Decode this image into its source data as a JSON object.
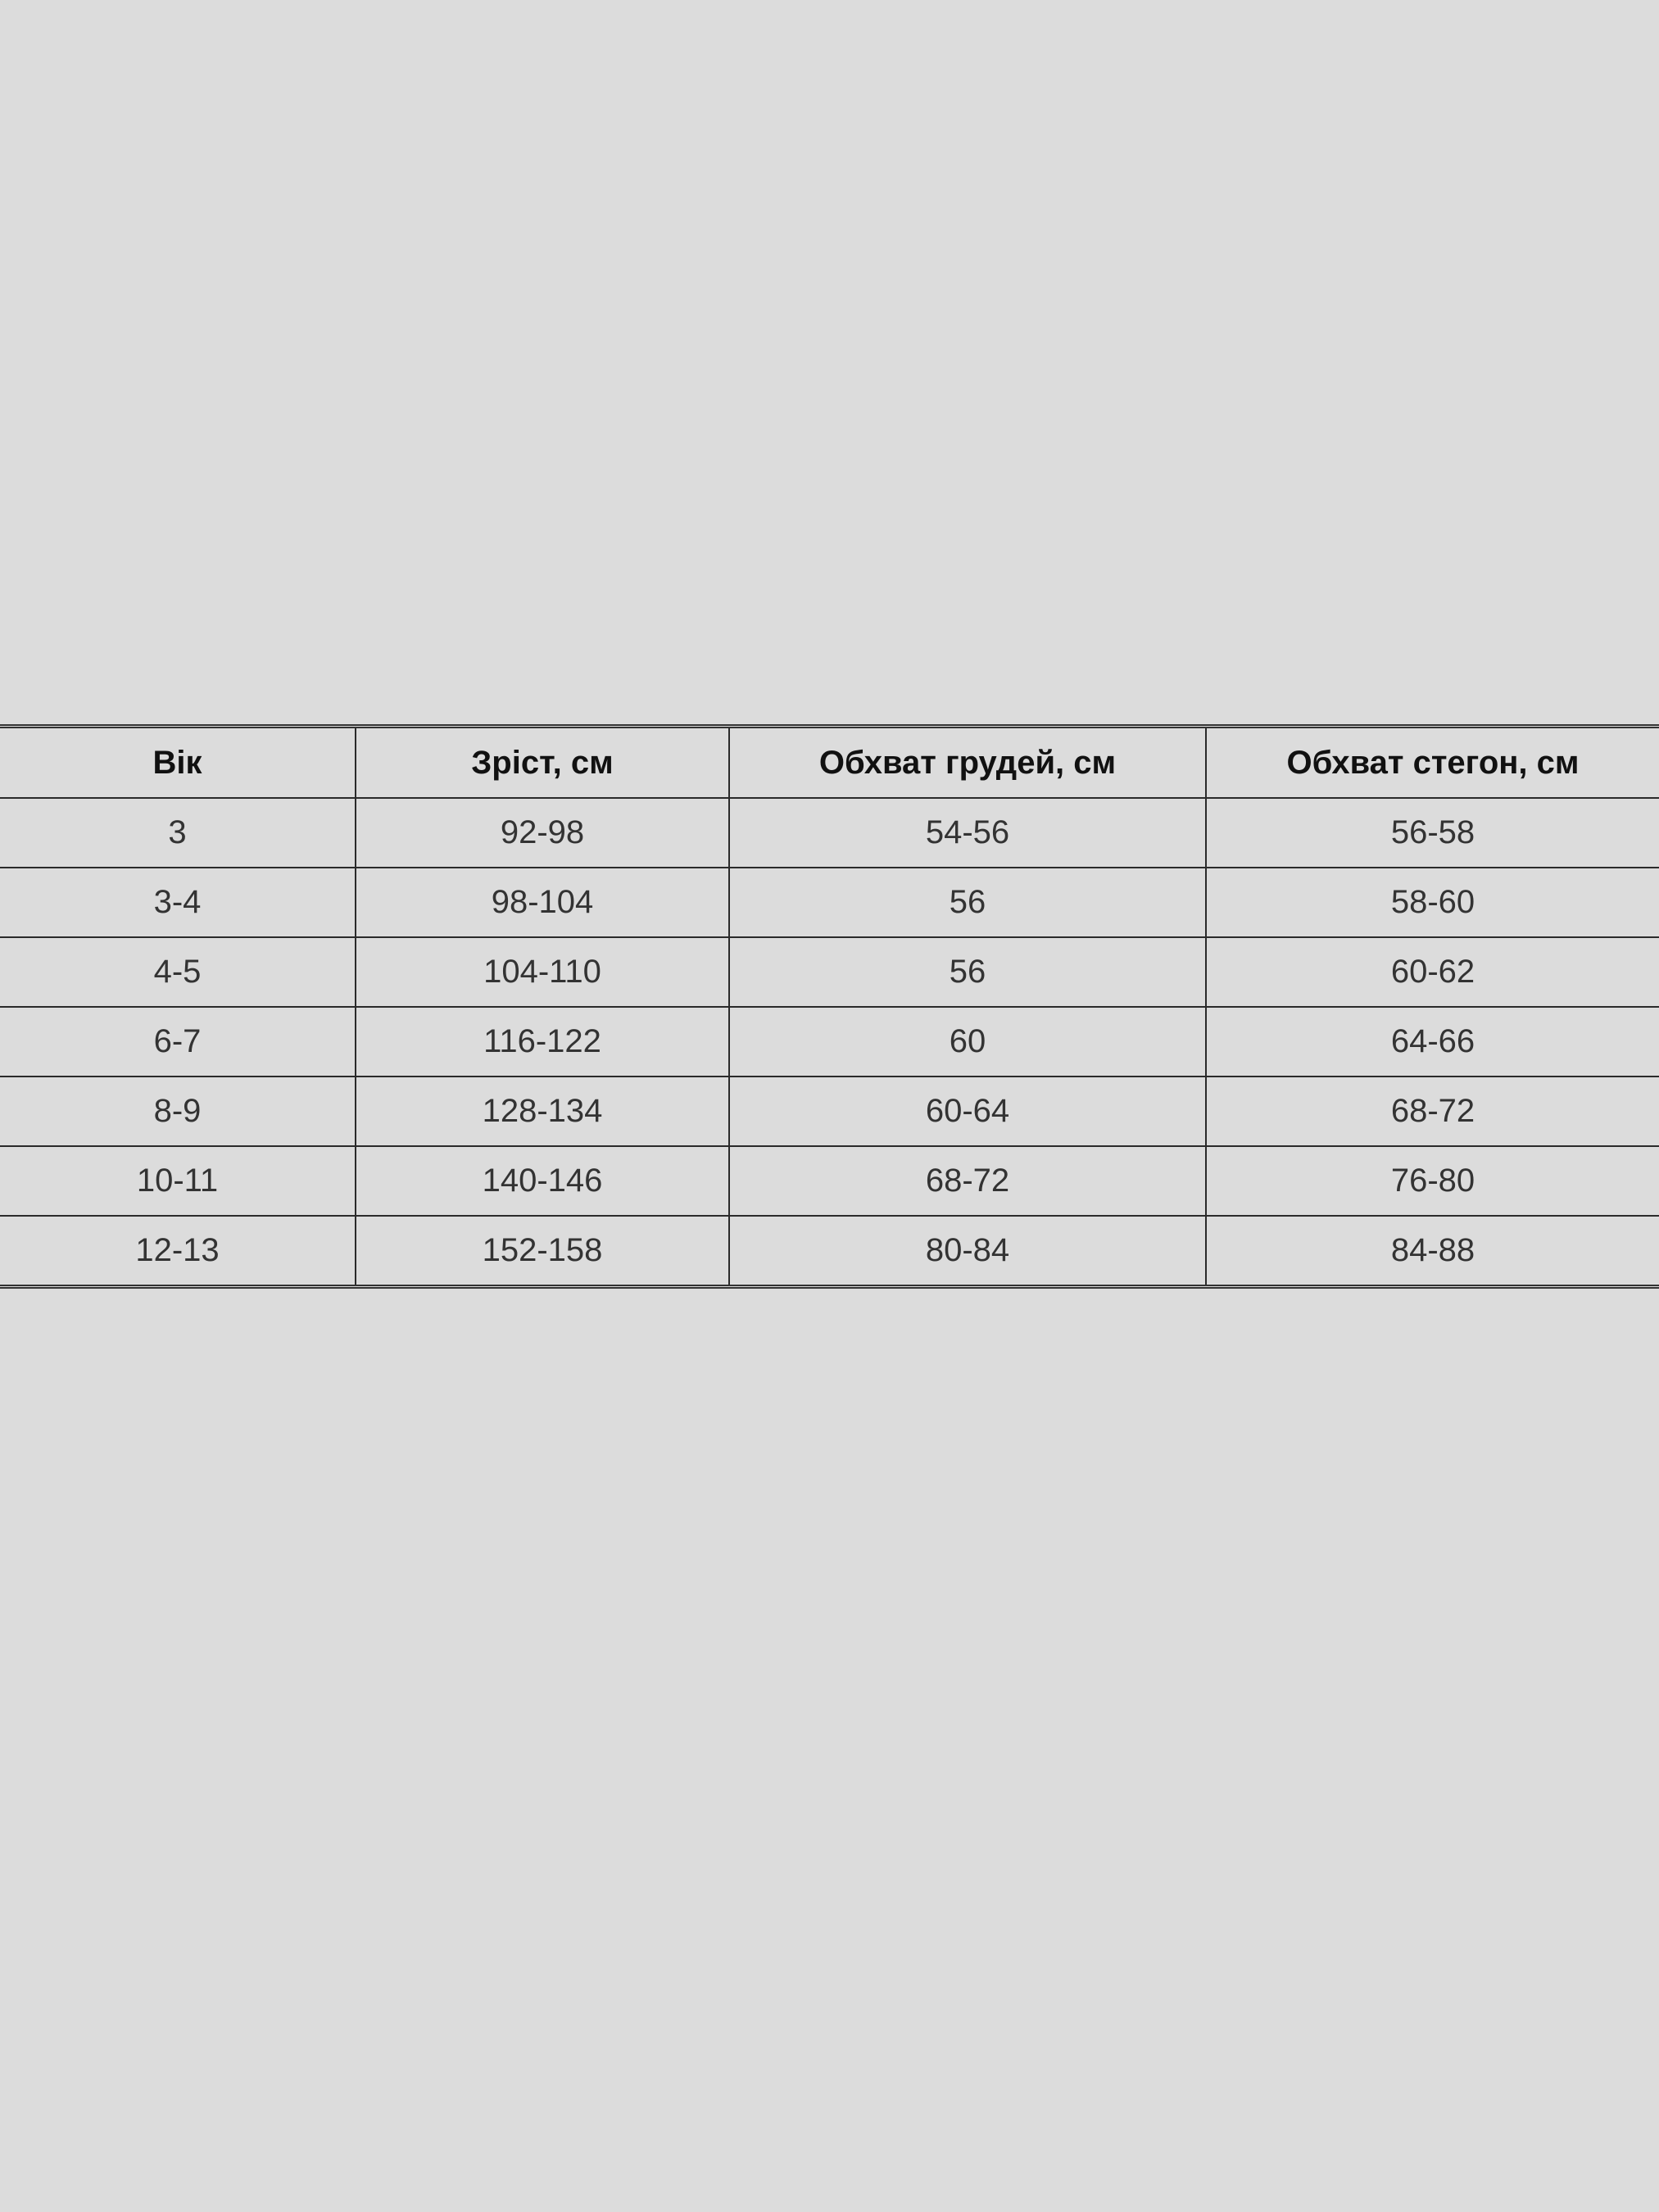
{
  "table": {
    "headers": [
      "Вік",
      "Зріст, см",
      "Обхват грудей, см",
      "Обхват стегон, см"
    ],
    "rows": [
      [
        "3",
        "92-98",
        "54-56",
        "56-58"
      ],
      [
        "3-4",
        "98-104",
        "56",
        "58-60"
      ],
      [
        "4-5",
        "104-110",
        "56",
        "60-62"
      ],
      [
        "6-7",
        "116-122",
        "60",
        "64-66"
      ],
      [
        "8-9",
        "128-134",
        "60-64",
        "68-72"
      ],
      [
        "10-11",
        "140-146",
        "68-72",
        "76-80"
      ],
      [
        "12-13",
        "152-158",
        "80-84",
        "84-88"
      ]
    ]
  }
}
